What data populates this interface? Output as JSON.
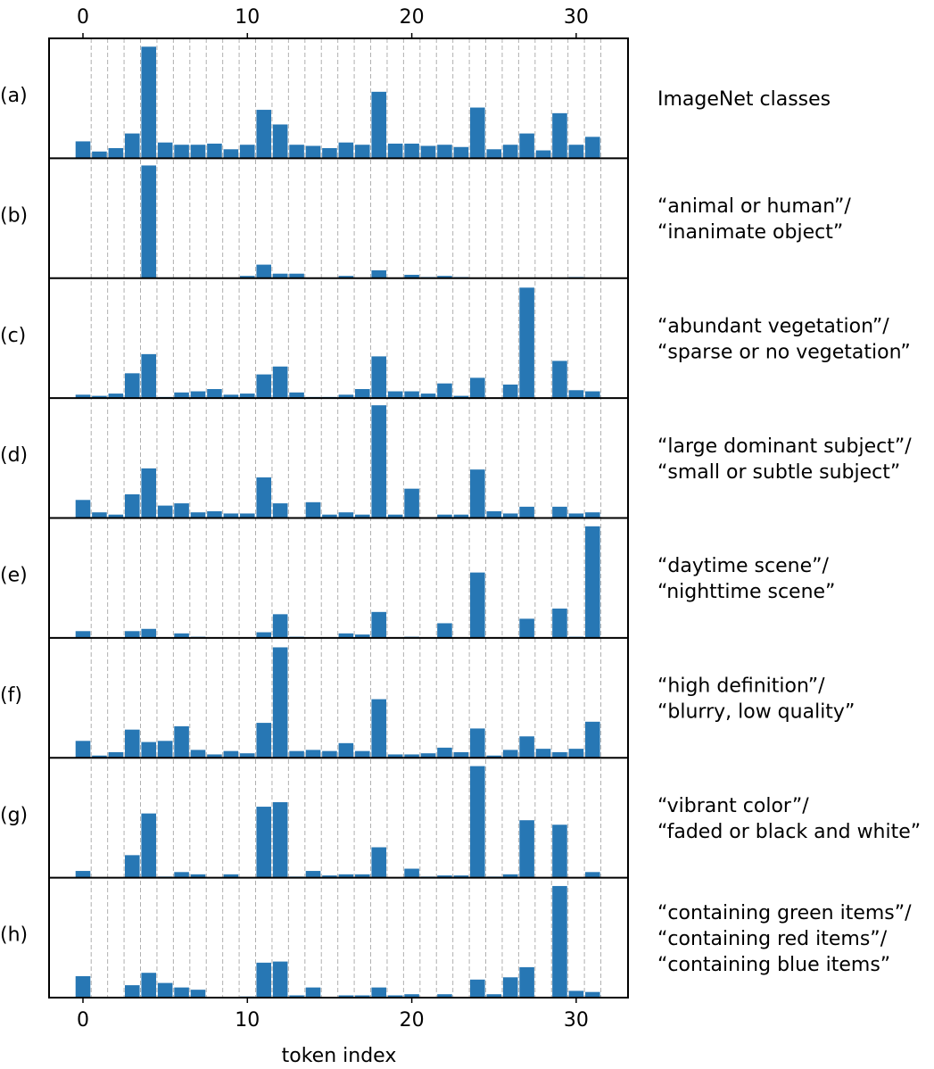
{
  "chart_data": {
    "type": "bar",
    "xlabel": "token index",
    "xticks": [
      0,
      10,
      20,
      30
    ],
    "xlim": [
      -2,
      33.5
    ],
    "bar_color": "#2777b4",
    "grid_color": "#b0b0b0",
    "panels": [
      {
        "label": "(a)",
        "description": [
          "ImageNet classes"
        ],
        "values": [
          0.15,
          0.06,
          0.09,
          0.22,
          0.99,
          0.14,
          0.12,
          0.12,
          0.13,
          0.08,
          0.12,
          0.43,
          0.3,
          0.12,
          0.11,
          0.09,
          0.14,
          0.12,
          0.59,
          0.13,
          0.13,
          0.11,
          0.12,
          0.1,
          0.45,
          0.08,
          0.12,
          0.22,
          0.07,
          0.4,
          0.12,
          0.19
        ]
      },
      {
        "label": "(b)",
        "description": [
          "“animal or human”/",
          "“inanimate object”"
        ],
        "values": [
          0,
          0,
          0,
          0,
          1.0,
          0,
          0,
          0,
          0,
          0,
          0.02,
          0.12,
          0.04,
          0.04,
          0,
          0,
          0.02,
          0,
          0.07,
          0,
          0.03,
          0.01,
          0.02,
          0.01,
          0,
          0,
          0,
          0,
          0,
          0,
          0.01,
          0
        ]
      },
      {
        "label": "(c)",
        "description": [
          "“abundant vegetation”/",
          "“sparse or no vegetation”"
        ],
        "values": [
          0.03,
          0.02,
          0.04,
          0.22,
          0.39,
          0.01,
          0.05,
          0.06,
          0.08,
          0.03,
          0.04,
          0.21,
          0.28,
          0.05,
          0.01,
          0.01,
          0.03,
          0.08,
          0.37,
          0.06,
          0.06,
          0.04,
          0.13,
          0.02,
          0.18,
          0,
          0.12,
          0.98,
          0,
          0.33,
          0.07,
          0.06
        ]
      },
      {
        "label": "(d)",
        "description": [
          "“large dominant subject”/",
          "“small or subtle subject”"
        ],
        "values": [
          0.16,
          0.05,
          0.03,
          0.21,
          0.44,
          0.11,
          0.13,
          0.05,
          0.06,
          0.04,
          0.04,
          0.36,
          0.13,
          0,
          0.14,
          0.03,
          0.05,
          0.03,
          1.0,
          0.03,
          0.26,
          0,
          0.03,
          0.03,
          0.43,
          0.06,
          0.04,
          0.1,
          0,
          0.1,
          0.04,
          0.05
        ]
      },
      {
        "label": "(e)",
        "description": [
          "“daytime scene”/",
          "“nighttime scene”"
        ],
        "values": [
          0.06,
          0,
          0,
          0.06,
          0.08,
          0,
          0.04,
          0.01,
          0,
          0,
          0,
          0.05,
          0.21,
          0.01,
          0,
          0,
          0.04,
          0.03,
          0.23,
          0,
          0.01,
          0,
          0.13,
          0,
          0.58,
          0,
          0,
          0.17,
          0,
          0.26,
          0.01,
          0.99
        ]
      },
      {
        "label": "(f)",
        "description": [
          "“high definition”/",
          "“blurry, low quality”"
        ],
        "values": [
          0.15,
          0.02,
          0.05,
          0.25,
          0.14,
          0.15,
          0.28,
          0.07,
          0.03,
          0.06,
          0.04,
          0.31,
          0.98,
          0.06,
          0.07,
          0.06,
          0.13,
          0.06,
          0.52,
          0.03,
          0.03,
          0.04,
          0.09,
          0.05,
          0.26,
          0.02,
          0.07,
          0.19,
          0.08,
          0.05,
          0.08,
          0.32
        ]
      },
      {
        "label": "(g)",
        "description": [
          "“vibrant color”/",
          "“faded or black and white”"
        ],
        "values": [
          0.06,
          0,
          0,
          0.2,
          0.57,
          0.01,
          0.05,
          0.03,
          0,
          0.03,
          0,
          0.63,
          0.67,
          0.01,
          0.06,
          0.02,
          0.03,
          0.03,
          0.27,
          0,
          0.08,
          0.01,
          0.02,
          0.02,
          0.99,
          0.01,
          0.03,
          0.51,
          0,
          0.47,
          0,
          0.05
        ]
      },
      {
        "label": "(h)",
        "description": [
          "“containing green items”/",
          "“containing red items”/",
          "“containing blue items”"
        ],
        "values": [
          0.19,
          0,
          0,
          0.11,
          0.22,
          0.13,
          0.09,
          0.07,
          0,
          0,
          0.01,
          0.31,
          0.32,
          0.02,
          0.09,
          0,
          0.02,
          0.02,
          0.09,
          0.02,
          0.03,
          0,
          0.03,
          0,
          0.16,
          0.03,
          0.18,
          0.27,
          0,
          0.99,
          0.06,
          0.05
        ]
      }
    ]
  }
}
